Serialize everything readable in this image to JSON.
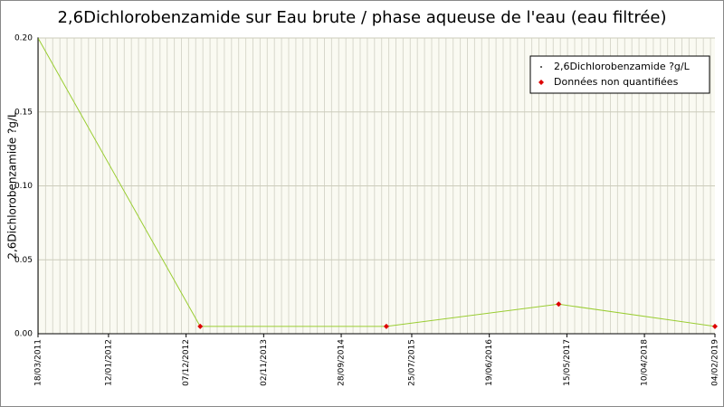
{
  "chart_data": {
    "type": "line",
    "title": "2,6Dichlorobenzamide sur Eau brute / phase aqueuse de l'eau (eau filtrée)",
    "y_label": "2,6Dichlorobenzamide ?g/L",
    "x": [
      "2011-03-18",
      "2013-02-05",
      "2015-04-08",
      "2017-04-10",
      "2019-02-04"
    ],
    "series": [
      {
        "name": "2,6Dichlorobenzamide ?g/L",
        "color": "#9acd32",
        "values": [
          0.2,
          0.005,
          0.005,
          0.02,
          0.005
        ]
      },
      {
        "name": "Données non quantifiées",
        "color": "#dd0000",
        "values": [
          null,
          0.005,
          0.005,
          0.02,
          0.005
        ]
      }
    ],
    "xlim": [
      "2011-03-18",
      "2019-02-04"
    ],
    "xticks": [
      {
        "value": "2011-03-18",
        "label": "18/03/2011"
      },
      {
        "value": "2012-01-12",
        "label": "12/01/2012"
      },
      {
        "value": "2012-12-07",
        "label": "07/12/2012"
      },
      {
        "value": "2013-11-02",
        "label": "02/11/2013"
      },
      {
        "value": "2014-09-28",
        "label": "28/09/2014"
      },
      {
        "value": "2015-07-25",
        "label": "25/07/2015"
      },
      {
        "value": "2016-06-19",
        "label": "19/06/2016"
      },
      {
        "value": "2017-05-15",
        "label": "15/05/2017"
      },
      {
        "value": "2018-04-10",
        "label": "10/04/2018"
      },
      {
        "value": "2019-02-04",
        "label": "04/02/2019"
      }
    ],
    "ylim": [
      0,
      0.2
    ],
    "yticks": [
      {
        "value": 0,
        "label": "0.00"
      },
      0.05,
      {
        "value": 0.1,
        "label": "0.10"
      },
      0.15,
      {
        "value": 0.2,
        "label": "0.20"
      }
    ],
    "grid": true
  }
}
